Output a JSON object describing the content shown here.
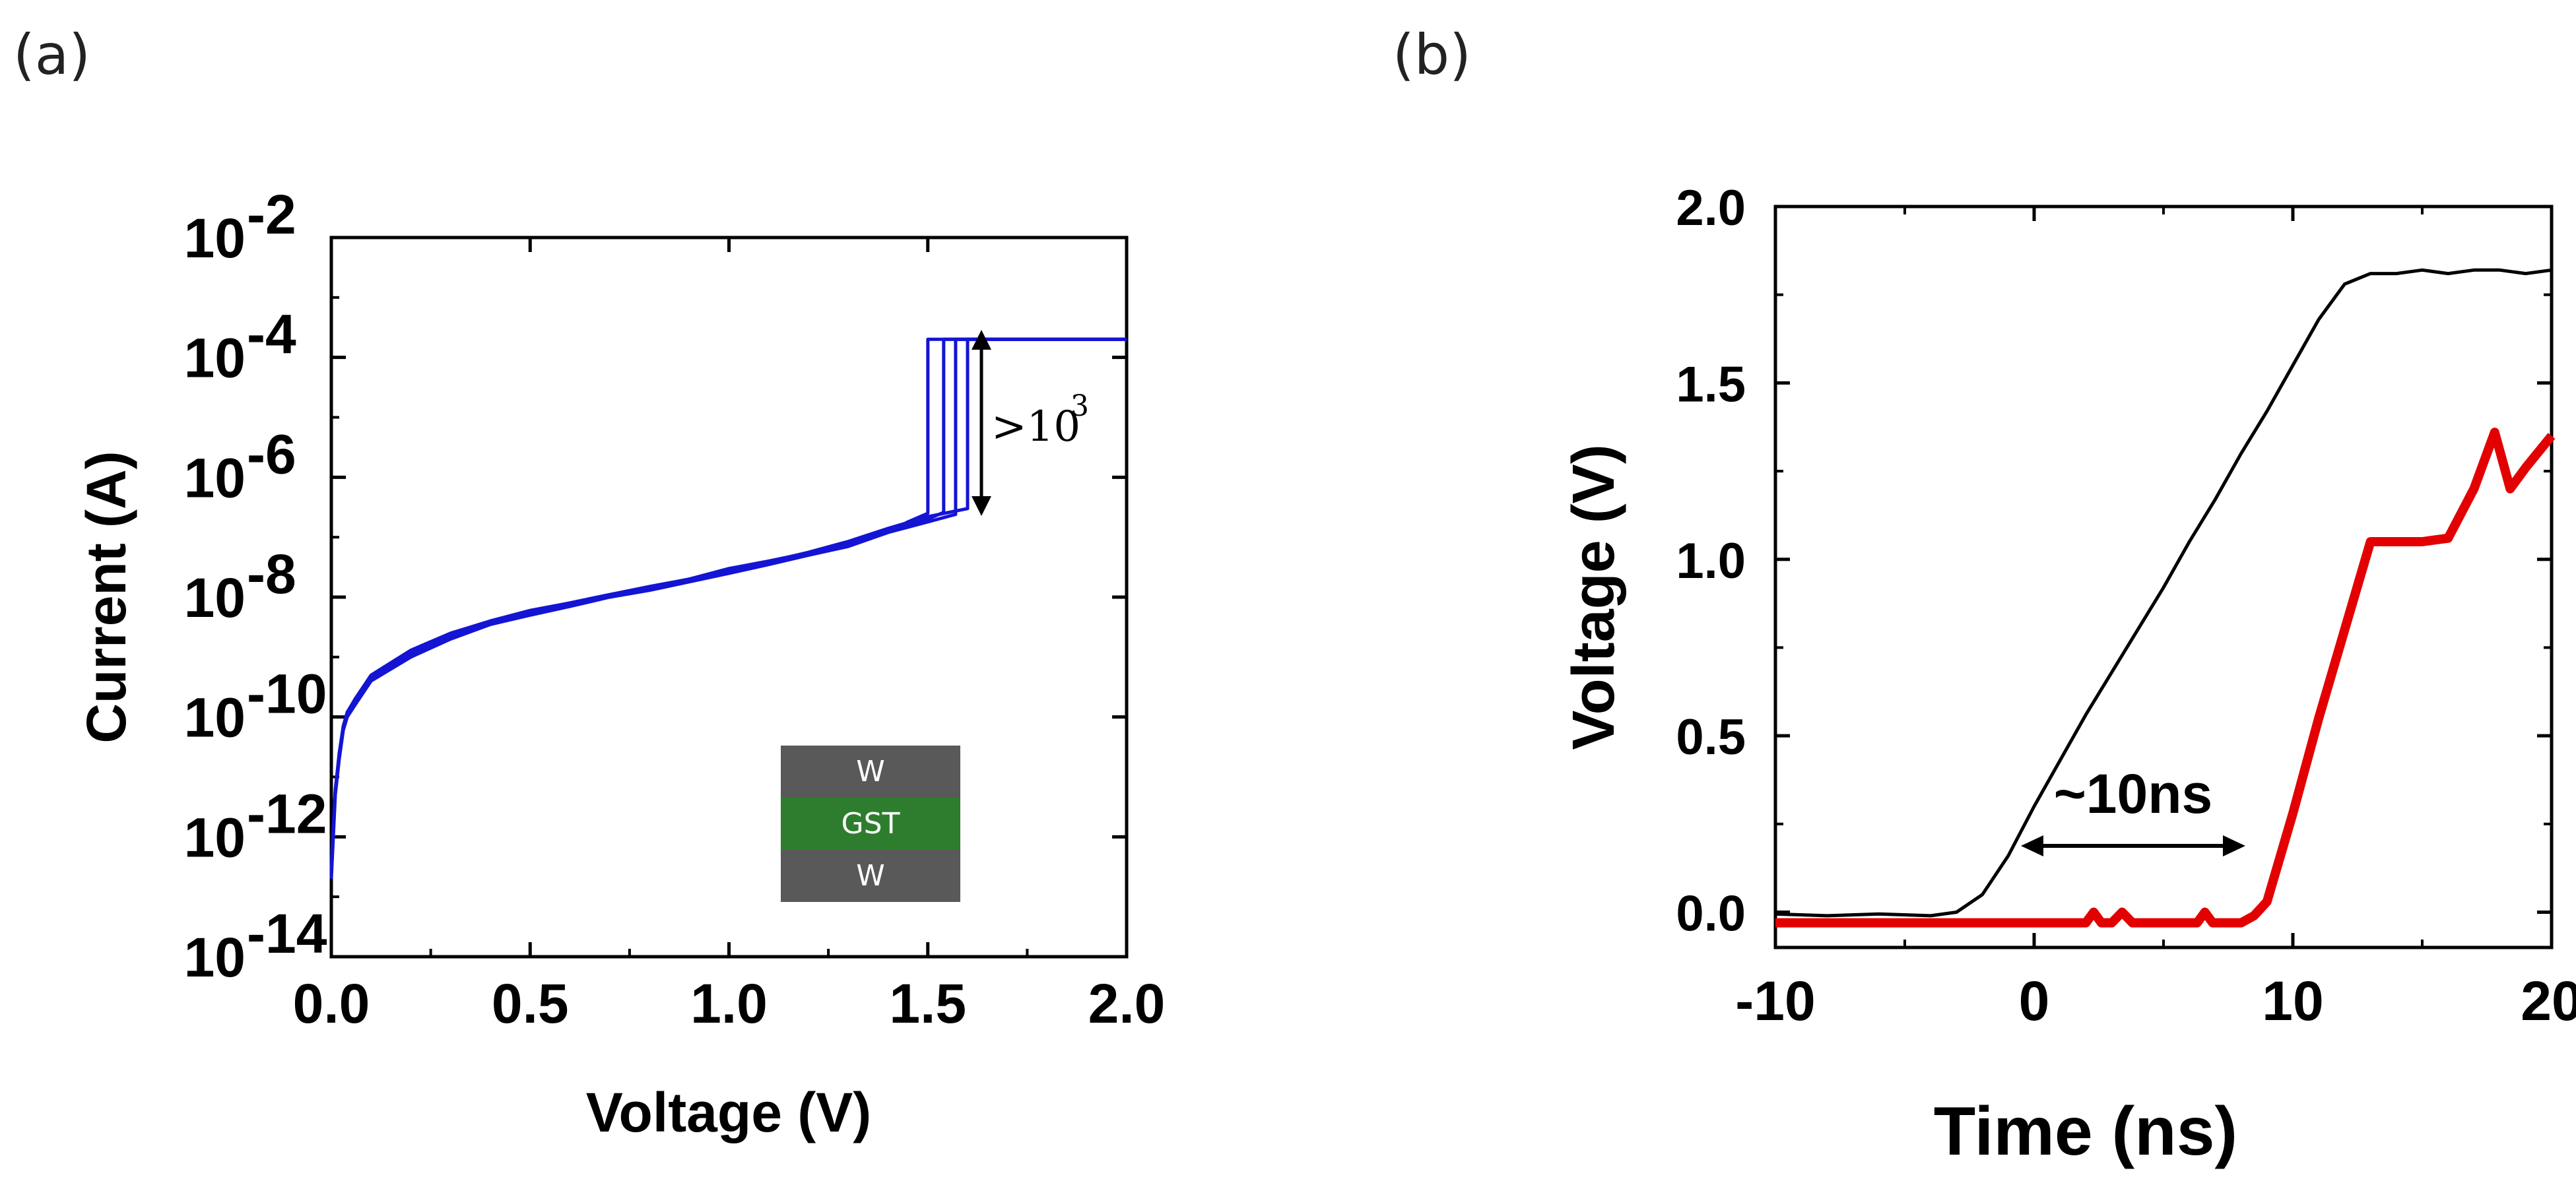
{
  "panels": {
    "a": "(a)",
    "b": "(b)"
  },
  "inset": {
    "layers": [
      "W",
      "GST",
      "W"
    ],
    "colors": [
      "#595959",
      "#2e7d2e",
      "#595959"
    ]
  },
  "annotations": {
    "a_ratio": ">10",
    "a_ratio_exp": "3",
    "b_delay": "~10ns"
  },
  "chart_data": [
    {
      "type": "line",
      "panel": "a",
      "xlabel": "Voltage (V)",
      "ylabel": "Current (A)",
      "xlim": [
        0.0,
        2.0
      ],
      "ylim": [
        1e-14,
        0.01
      ],
      "yscale": "log",
      "xticks": [
        "0.0",
        "0.5",
        "1.0",
        "1.5",
        "2.0"
      ],
      "ytick_exponents": [
        -2,
        -4,
        -6,
        -8,
        -10,
        -12,
        -14
      ],
      "ytick_base": "10",
      "color": "#1414d4",
      "series": [
        {
          "x": [
            0.0,
            0.005,
            0.01,
            0.02,
            0.03,
            0.04,
            0.06,
            0.1,
            0.2,
            0.3,
            0.4,
            0.5,
            0.6,
            0.7,
            0.8,
            0.9,
            1.0,
            1.1,
            1.2,
            1.3,
            1.4,
            1.45,
            1.5,
            1.5,
            2.0
          ],
          "y": [
            2e-13,
            1e-12,
            5e-12,
            2e-11,
            6e-11,
            1e-10,
            1.6e-10,
            4e-10,
            1e-09,
            2e-09,
            3.5e-09,
            5e-09,
            7e-09,
            1e-08,
            1.3e-08,
            1.8e-08,
            2.5e-08,
            3.5e-08,
            5e-08,
            7e-08,
            1.2e-07,
            1.8e-07,
            2.5e-07,
            0.0002,
            0.0002
          ]
        },
        {
          "x": [
            0.0,
            0.005,
            0.01,
            0.02,
            0.03,
            0.04,
            0.06,
            0.1,
            0.2,
            0.3,
            0.4,
            0.5,
            0.6,
            0.7,
            0.8,
            0.9,
            1.0,
            1.1,
            1.2,
            1.3,
            1.4,
            1.5,
            1.54,
            1.54,
            2.0
          ],
          "y": [
            3e-13,
            1.5e-12,
            6e-12,
            2.5e-11,
            7e-11,
            1.2e-10,
            2e-10,
            5e-10,
            1.3e-09,
            2.5e-09,
            4e-09,
            6e-09,
            8e-09,
            1.1e-08,
            1.5e-08,
            2e-08,
            3e-08,
            4e-08,
            5.5e-08,
            8e-08,
            1.3e-07,
            2e-07,
            2.6e-07,
            0.0002,
            0.0002
          ]
        },
        {
          "x": [
            0.0,
            0.005,
            0.01,
            0.02,
            0.03,
            0.04,
            0.06,
            0.1,
            0.2,
            0.3,
            0.4,
            0.5,
            0.6,
            0.7,
            0.8,
            0.9,
            1.0,
            1.1,
            1.2,
            1.3,
            1.4,
            1.5,
            1.57,
            1.57,
            2.0
          ],
          "y": [
            2.5e-13,
            1.2e-12,
            5.5e-12,
            2.2e-11,
            6.5e-11,
            1.1e-10,
            1.8e-10,
            4.5e-10,
            1.1e-09,
            2.2e-09,
            3.7e-09,
            5.5e-09,
            7.5e-09,
            1.05e-08,
            1.4e-08,
            1.9e-08,
            2.7e-08,
            3.8e-08,
            5.2e-08,
            7.5e-08,
            1.2e-07,
            1.8e-07,
            2.4e-07,
            0.0002,
            0.0002
          ]
        },
        {
          "x": [
            0.0,
            0.005,
            0.01,
            0.02,
            0.03,
            0.04,
            0.06,
            0.1,
            0.2,
            0.3,
            0.4,
            0.5,
            0.6,
            0.7,
            0.8,
            0.9,
            1.0,
            1.1,
            1.2,
            1.3,
            1.4,
            1.5,
            1.6,
            1.6,
            2.0
          ],
          "y": [
            3e-13,
            1.4e-12,
            6e-12,
            2.4e-11,
            7e-11,
            1.2e-10,
            1.9e-10,
            4.2e-10,
            1.2e-09,
            2.4e-09,
            3.8e-09,
            5.8e-09,
            8e-09,
            1.1e-08,
            1.45e-08,
            2e-08,
            2.8e-08,
            3.9e-08,
            5.6e-08,
            8.5e-08,
            1.4e-07,
            2.2e-07,
            3e-07,
            0.0002,
            0.0002
          ]
        }
      ]
    },
    {
      "type": "line",
      "panel": "b",
      "xlabel": "Time (ns)",
      "ylabel": "Voltage (V)",
      "xlim": [
        -10,
        20
      ],
      "ylim": [
        -0.1,
        2.0
      ],
      "xticks": [
        "-10",
        "0",
        "10",
        "20"
      ],
      "yticks": [
        "0.0",
        "0.5",
        "1.0",
        "1.5",
        "2.0"
      ],
      "series": [
        {
          "color": "#000000",
          "x": [
            -10,
            -8,
            -6,
            -4,
            -3,
            -2,
            -1,
            0,
            1,
            2,
            3,
            4,
            5,
            6,
            7,
            8,
            9,
            10,
            11,
            12,
            13,
            14,
            15,
            16,
            17,
            18,
            19,
            20
          ],
          "y": [
            -0.005,
            -0.01,
            -0.005,
            -0.01,
            0.0,
            0.05,
            0.16,
            0.3,
            0.43,
            0.56,
            0.68,
            0.8,
            0.92,
            1.05,
            1.17,
            1.3,
            1.42,
            1.55,
            1.68,
            1.78,
            1.81,
            1.81,
            1.82,
            1.81,
            1.82,
            1.82,
            1.81,
            1.82
          ]
        },
        {
          "color": "#e30000",
          "x": [
            -10,
            -5,
            0,
            2,
            2.3,
            2.6,
            3,
            3.4,
            3.8,
            5,
            6.3,
            6.6,
            6.9,
            7.5,
            8,
            8.5,
            9,
            10,
            11,
            12,
            13,
            14,
            15,
            16,
            17,
            17.8,
            18.4,
            19,
            20
          ],
          "y": [
            -0.03,
            -0.03,
            -0.03,
            -0.03,
            0.0,
            -0.03,
            -0.03,
            0.0,
            -0.03,
            -0.03,
            -0.03,
            0.0,
            -0.03,
            -0.03,
            -0.03,
            -0.01,
            0.03,
            0.28,
            0.55,
            0.8,
            1.05,
            1.05,
            1.05,
            1.06,
            1.2,
            1.36,
            1.2,
            1.26,
            1.35
          ]
        }
      ]
    }
  ]
}
